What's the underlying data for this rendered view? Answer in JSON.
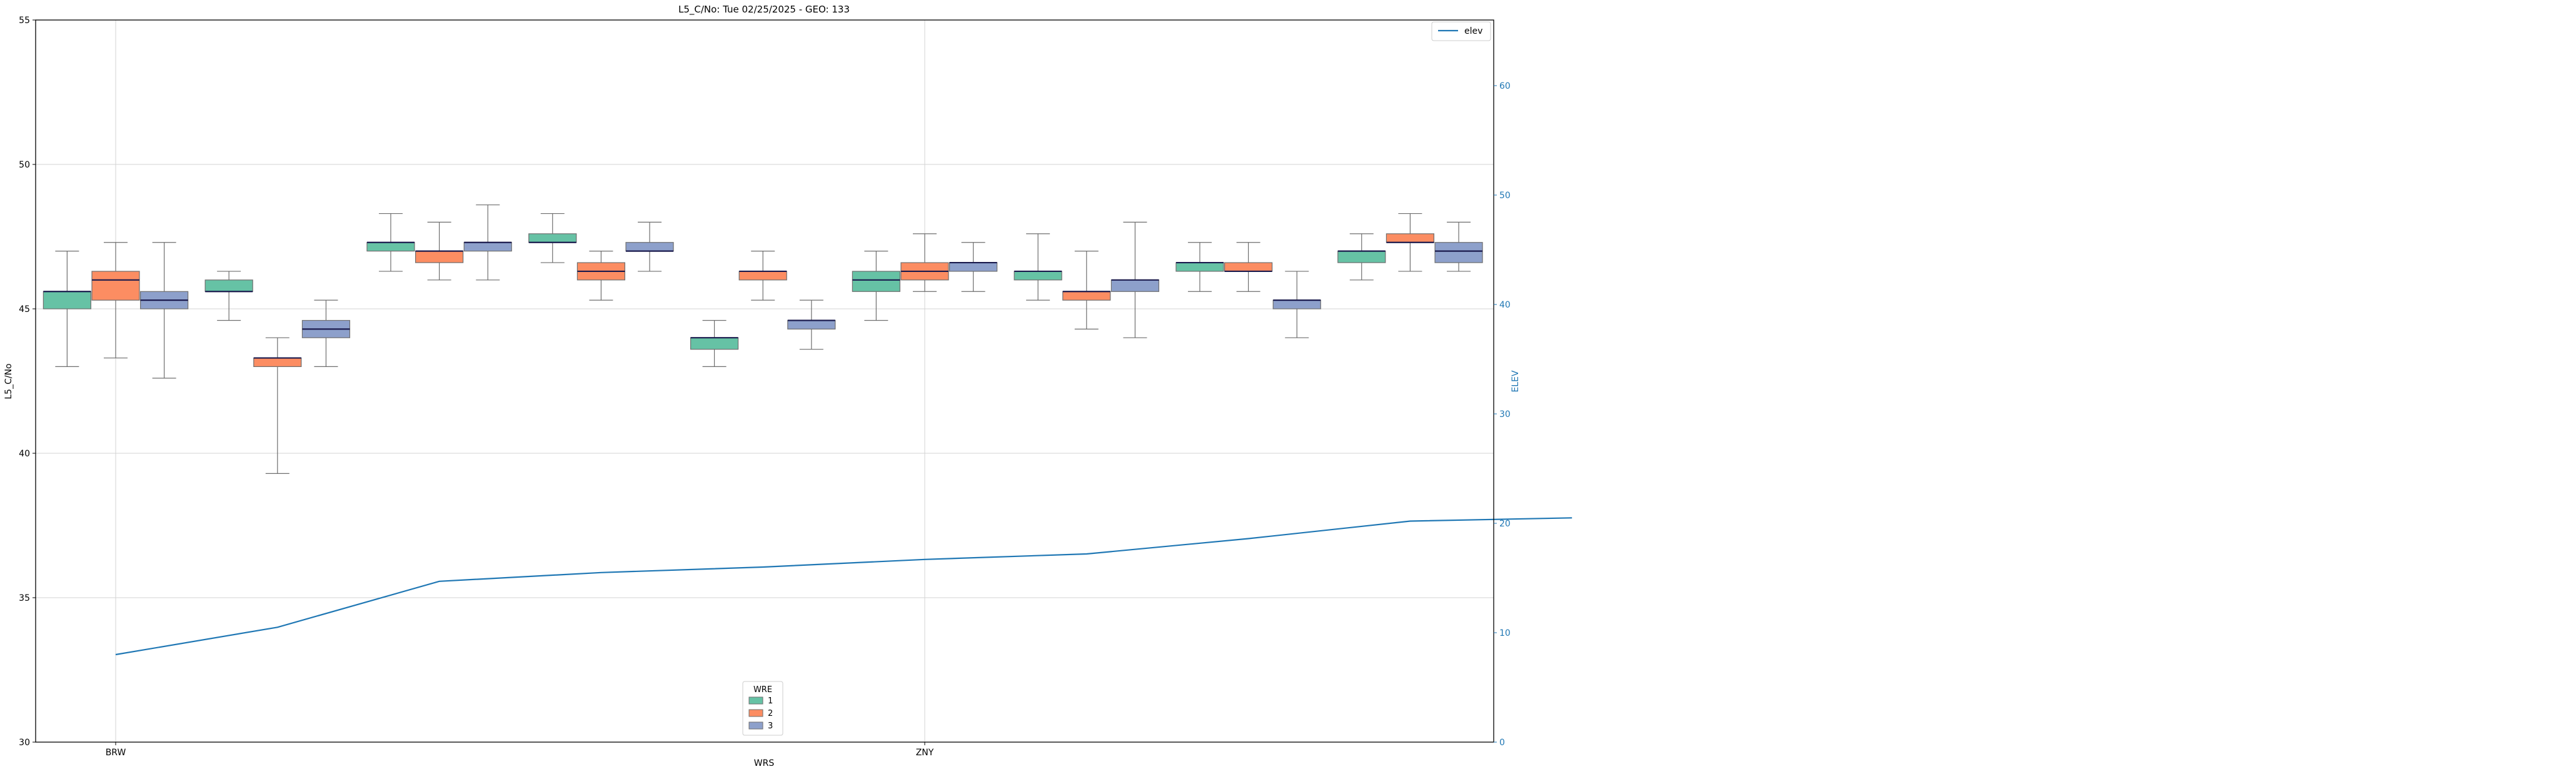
{
  "chart_data": {
    "type": "box",
    "title": "L5_C/No: Tue 02/25/2025 - GEO: 133",
    "xlabel": "WRS",
    "ylabel": "L5_C/No",
    "y2label": "ELEV",
    "ylim": [
      30,
      55
    ],
    "y2lim": [
      0,
      66
    ],
    "yticks": [
      "30",
      "35",
      "40",
      "45",
      "50",
      "55"
    ],
    "y2ticks": [
      "0",
      "10",
      "20",
      "30",
      "40",
      "50",
      "60"
    ],
    "xtick_labels": [
      {
        "index": 0,
        "label": "BRW"
      },
      {
        "index": 10,
        "label": "ZNY"
      }
    ],
    "grid": true,
    "station_count": 18,
    "wre_legend": {
      "title": "WRE",
      "entries": [
        {
          "label": "1",
          "color": "#66c2a5"
        },
        {
          "label": "2",
          "color": "#fc8d62"
        },
        {
          "label": "3",
          "color": "#8da0cb"
        }
      ]
    },
    "elev_legend": {
      "label": "elev",
      "color": "#1f77b4"
    },
    "elevation": [
      {
        "index": 0,
        "value": 8
      },
      {
        "index": 2,
        "value": 10.5
      },
      {
        "index": 4,
        "value": 14.7
      },
      {
        "index": 6,
        "value": 15.5
      },
      {
        "index": 8,
        "value": 16
      },
      {
        "index": 10,
        "value": 16.7
      },
      {
        "index": 12,
        "value": 17.2
      },
      {
        "index": 14,
        "value": 18.6
      },
      {
        "index": 16,
        "value": 20.2
      },
      {
        "index": 18,
        "value": 20.5
      }
    ],
    "boxes": [
      {
        "pos": -0.6,
        "wre": "1",
        "q1": 45.0,
        "med": 45.6,
        "q3": 45.6,
        "wlo": 43.0,
        "whi": 47.0
      },
      {
        "pos": 0.0,
        "wre": "2",
        "q1": 45.3,
        "med": 46.0,
        "q3": 46.3,
        "wlo": 43.3,
        "whi": 47.3
      },
      {
        "pos": 0.6,
        "wre": "3",
        "q1": 45.0,
        "med": 45.3,
        "q3": 45.6,
        "wlo": 42.6,
        "whi": 47.3
      },
      {
        "pos": 1.4,
        "wre": "1",
        "q1": 45.6,
        "med": 45.6,
        "q3": 46.0,
        "wlo": 44.6,
        "whi": 46.3
      },
      {
        "pos": 2.0,
        "wre": "2",
        "q1": 43.0,
        "med": 43.3,
        "q3": 43.3,
        "wlo": 39.3,
        "whi": 44.0
      },
      {
        "pos": 2.6,
        "wre": "3",
        "q1": 44.0,
        "med": 44.3,
        "q3": 44.6,
        "wlo": 43.0,
        "whi": 45.3
      },
      {
        "pos": 3.4,
        "wre": "1",
        "q1": 47.0,
        "med": 47.3,
        "q3": 47.3,
        "wlo": 46.3,
        "whi": 48.3
      },
      {
        "pos": 4.0,
        "wre": "2",
        "q1": 46.6,
        "med": 47.0,
        "q3": 47.0,
        "wlo": 46.0,
        "whi": 48.0
      },
      {
        "pos": 4.6,
        "wre": "3",
        "q1": 47.0,
        "med": 47.3,
        "q3": 47.3,
        "wlo": 46.0,
        "whi": 48.6
      },
      {
        "pos": 5.4,
        "wre": "1",
        "q1": 47.3,
        "med": 47.3,
        "q3": 47.6,
        "wlo": 46.6,
        "whi": 48.3
      },
      {
        "pos": 6.0,
        "wre": "2",
        "q1": 46.0,
        "med": 46.3,
        "q3": 46.6,
        "wlo": 45.3,
        "whi": 47.0
      },
      {
        "pos": 6.6,
        "wre": "3",
        "q1": 47.0,
        "med": 47.0,
        "q3": 47.3,
        "wlo": 46.3,
        "whi": 48.0
      },
      {
        "pos": 7.4,
        "wre": "1",
        "q1": 43.6,
        "med": 44.0,
        "q3": 44.0,
        "wlo": 43.0,
        "whi": 44.6
      },
      {
        "pos": 8.0,
        "wre": "2",
        "q1": 46.0,
        "med": 46.3,
        "q3": 46.3,
        "wlo": 45.3,
        "whi": 47.0
      },
      {
        "pos": 8.6,
        "wre": "3",
        "q1": 44.3,
        "med": 44.6,
        "q3": 44.6,
        "wlo": 43.6,
        "whi": 45.3
      },
      {
        "pos": 9.4,
        "wre": "1",
        "q1": 45.6,
        "med": 46.0,
        "q3": 46.3,
        "wlo": 44.6,
        "whi": 47.0
      },
      {
        "pos": 10.0,
        "wre": "2",
        "q1": 46.0,
        "med": 46.3,
        "q3": 46.6,
        "wlo": 45.6,
        "whi": 47.6
      },
      {
        "pos": 10.6,
        "wre": "3",
        "q1": 46.3,
        "med": 46.6,
        "q3": 46.6,
        "wlo": 45.6,
        "whi": 47.3
      },
      {
        "pos": 11.4,
        "wre": "1",
        "q1": 46.0,
        "med": 46.3,
        "q3": 46.3,
        "wlo": 45.3,
        "whi": 47.6
      },
      {
        "pos": 12.0,
        "wre": "2",
        "q1": 45.3,
        "med": 45.6,
        "q3": 45.6,
        "wlo": 44.3,
        "whi": 47.0
      },
      {
        "pos": 12.6,
        "wre": "3",
        "q1": 45.6,
        "med": 46.0,
        "q3": 46.0,
        "wlo": 44.0,
        "whi": 48.0
      },
      {
        "pos": 13.4,
        "wre": "1",
        "q1": 46.3,
        "med": 46.6,
        "q3": 46.6,
        "wlo": 45.6,
        "whi": 47.3
      },
      {
        "pos": 14.0,
        "wre": "2",
        "q1": 46.3,
        "med": 46.3,
        "q3": 46.6,
        "wlo": 45.6,
        "whi": 47.3
      },
      {
        "pos": 14.6,
        "wre": "3",
        "q1": 45.0,
        "med": 45.3,
        "q3": 45.3,
        "wlo": 44.0,
        "whi": 46.3
      },
      {
        "pos": 15.4,
        "wre": "1",
        "q1": 46.6,
        "med": 47.0,
        "q3": 47.0,
        "wlo": 46.0,
        "whi": 47.6
      },
      {
        "pos": 16.0,
        "wre": "2",
        "q1": 47.3,
        "med": 47.3,
        "q3": 47.6,
        "wlo": 46.3,
        "whi": 48.3
      },
      {
        "pos": 16.6,
        "wre": "3",
        "q1": 46.6,
        "med": 47.0,
        "q3": 47.3,
        "wlo": 46.3,
        "whi": 48.0
      }
    ]
  }
}
